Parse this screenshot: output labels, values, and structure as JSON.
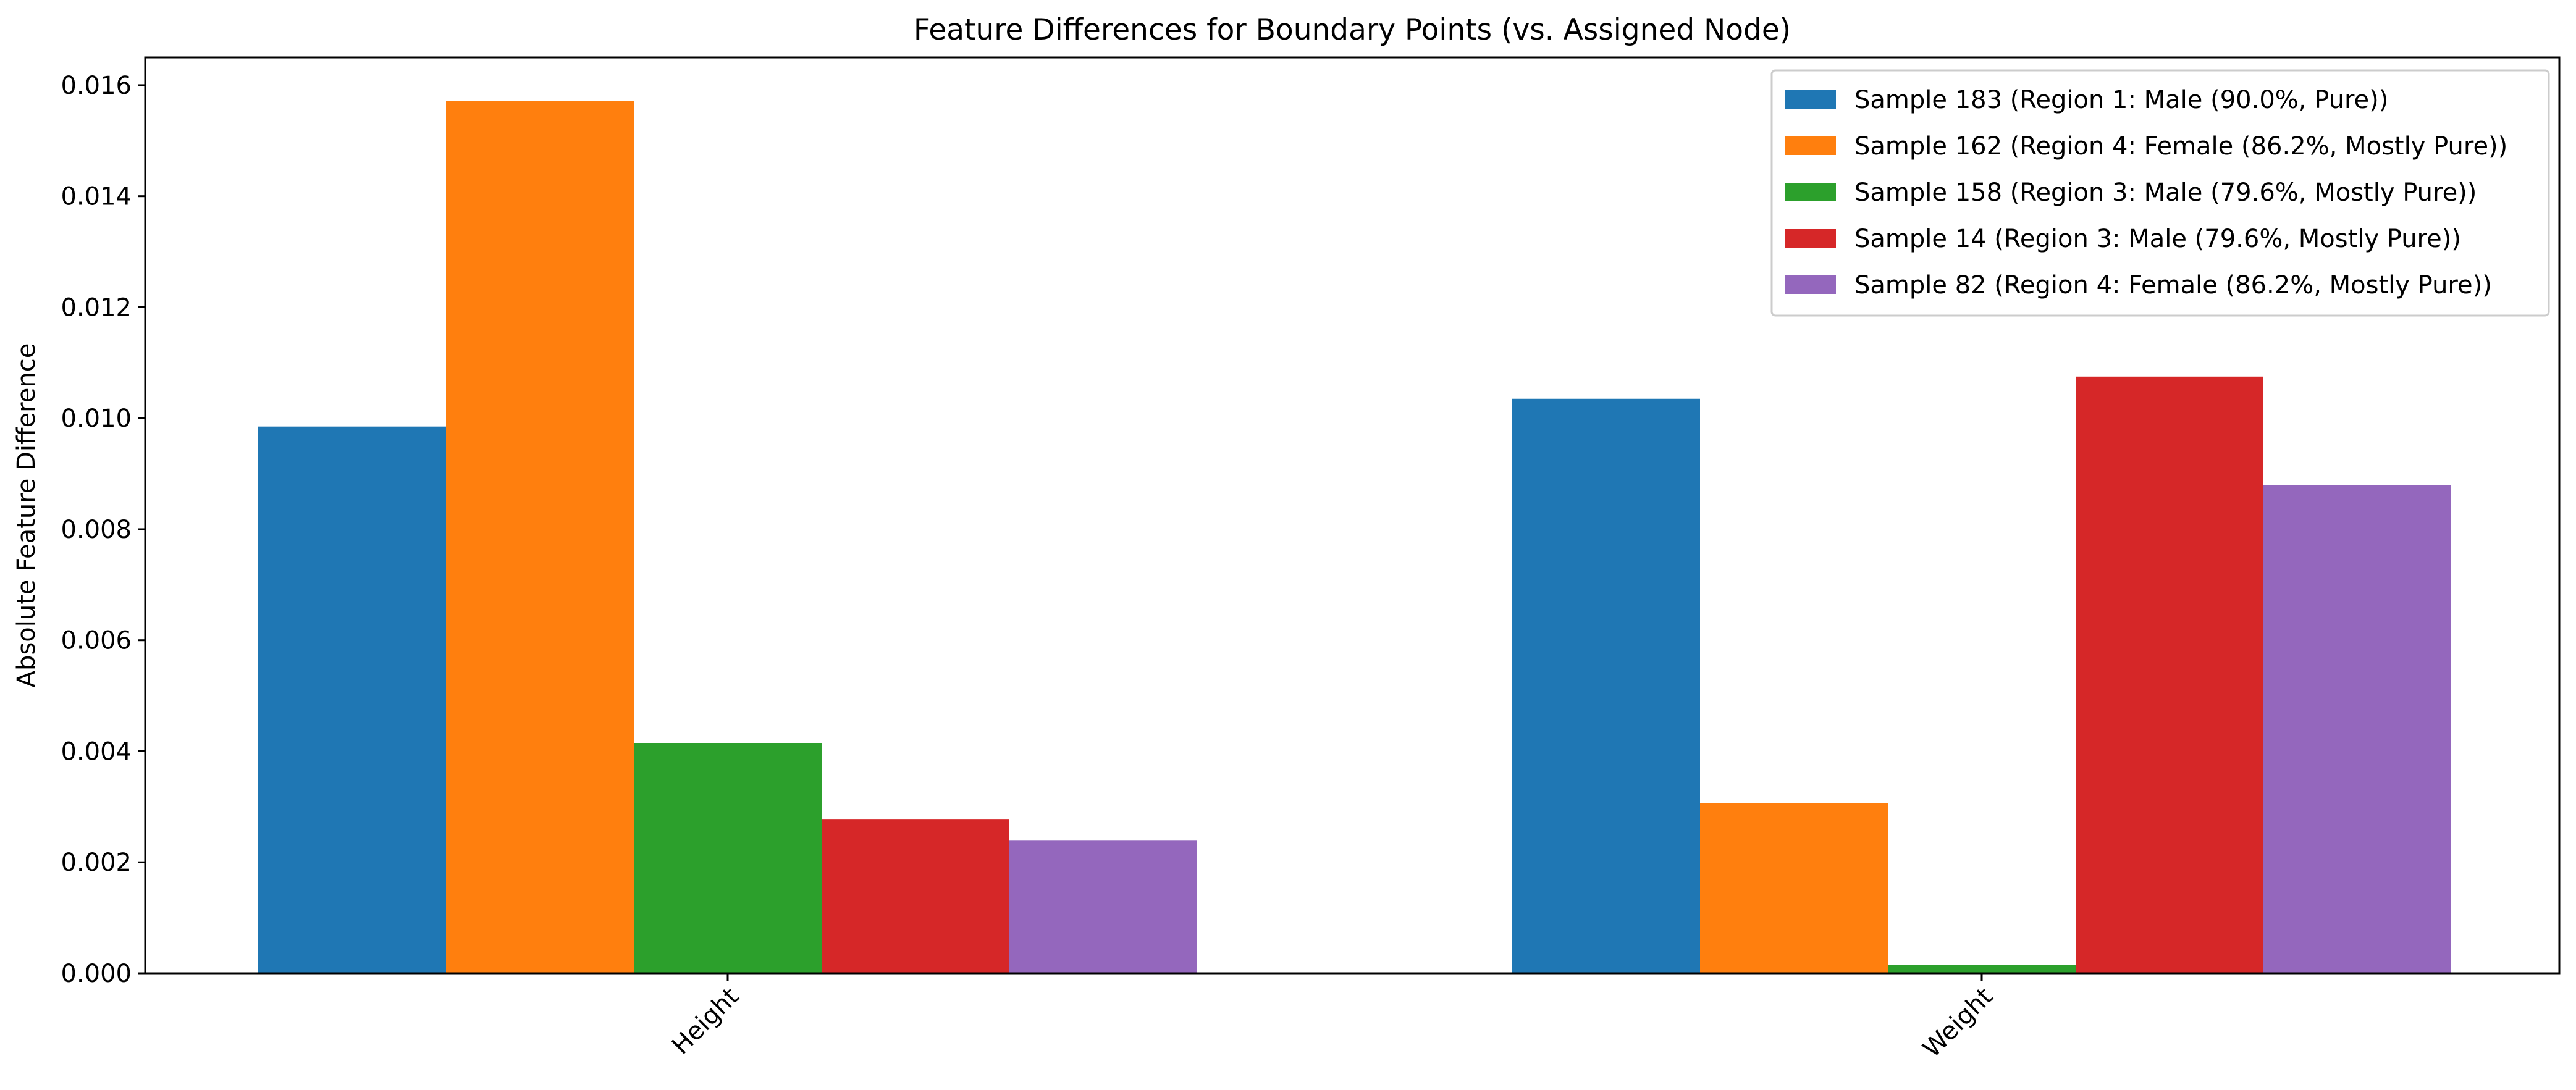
{
  "chart_data": {
    "type": "bar",
    "title": "Feature Differences for Boundary Points (vs. Assigned Node)",
    "xlabel": "",
    "ylabel": "Absolute Feature Difference",
    "categories": [
      "Height",
      "Weight"
    ],
    "ylim": [
      0,
      0.0165
    ],
    "yticks": [
      0.0,
      0.002,
      0.004,
      0.006,
      0.008,
      0.01,
      0.012,
      0.014,
      0.016
    ],
    "ytick_labels": [
      "0.000",
      "0.002",
      "0.004",
      "0.006",
      "0.008",
      "0.010",
      "0.012",
      "0.014",
      "0.016"
    ],
    "grid": false,
    "legend_position": "top-right",
    "series": [
      {
        "name": "Sample 183 (Region 1: Male (90.0%, Pure))",
        "color": "#1f77b4",
        "values": [
          0.00985,
          0.01035
        ]
      },
      {
        "name": "Sample 162 (Region 4: Female (86.2%, Mostly Pure))",
        "color": "#ff7f0e",
        "values": [
          0.01572,
          0.00307
        ]
      },
      {
        "name": "Sample 158 (Region 3: Male (79.6%, Mostly Pure))",
        "color": "#2ca02c",
        "values": [
          0.00415,
          0.00015
        ]
      },
      {
        "name": "Sample 14 (Region 3: Male (79.6%, Mostly Pure))",
        "color": "#d62728",
        "values": [
          0.00278,
          0.01075
        ]
      },
      {
        "name": "Sample 82 (Region 4: Female (86.2%, Mostly Pure))",
        "color": "#9467bd",
        "values": [
          0.0024,
          0.0088
        ]
      }
    ]
  }
}
